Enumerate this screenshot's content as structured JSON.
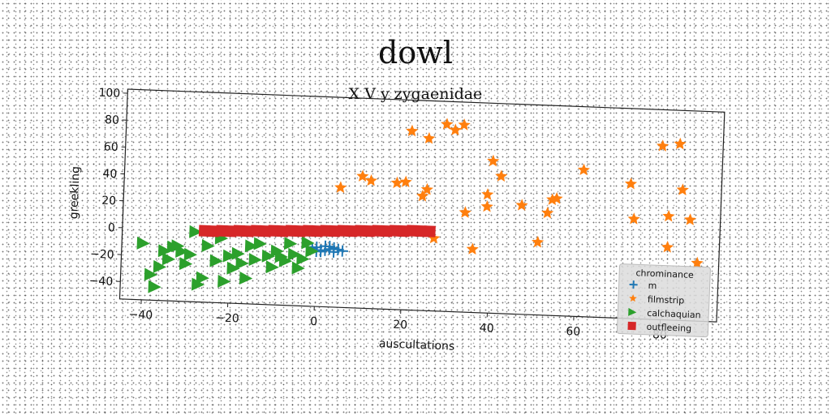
{
  "chart_data": {
    "type": "scatter",
    "title": "dowl",
    "subtitle": "X V y zygaenidae",
    "xlabel": "auscultations",
    "ylabel": "greekling",
    "xlim": [
      -45,
      93
    ],
    "ylim": [
      -53,
      103
    ],
    "xticks": [
      -40,
      -20,
      0,
      20,
      40,
      60,
      80
    ],
    "yticks": [
      -40,
      -20,
      0,
      20,
      40,
      60,
      80,
      100
    ],
    "grid": false,
    "legend": {
      "title": "chrominance",
      "position": "lower-right"
    },
    "series": [
      {
        "name": "m",
        "marker": "plus",
        "color": "#1f77b4",
        "points": [
          [
            -1,
            -10
          ],
          [
            0,
            -9
          ],
          [
            1,
            -11
          ],
          [
            2,
            -8
          ],
          [
            1,
            -12
          ],
          [
            3,
            -10
          ],
          [
            4,
            -9
          ],
          [
            2,
            -11
          ],
          [
            3,
            -8
          ],
          [
            5,
            -10
          ],
          [
            4,
            -12
          ],
          [
            6,
            -11
          ],
          [
            -2,
            -9
          ],
          [
            0,
            -12
          ]
        ]
      },
      {
        "name": "filmstrip",
        "marker": "star",
        "color": "#ff7f0e",
        "points": [
          [
            5,
            36
          ],
          [
            10,
            45
          ],
          [
            12,
            42
          ],
          [
            18,
            41
          ],
          [
            20,
            42
          ],
          [
            21,
            80
          ],
          [
            24,
            32
          ],
          [
            25,
            75
          ],
          [
            25,
            37
          ],
          [
            27,
            1
          ],
          [
            29,
            86
          ],
          [
            31,
            82
          ],
          [
            33,
            86
          ],
          [
            34,
            21
          ],
          [
            36,
            -6
          ],
          [
            39,
            35
          ],
          [
            39,
            26
          ],
          [
            40,
            60
          ],
          [
            42,
            49
          ],
          [
            47,
            28
          ],
          [
            51,
            1
          ],
          [
            53,
            23
          ],
          [
            54,
            33
          ],
          [
            55,
            34
          ],
          [
            61,
            56
          ],
          [
            72,
            47
          ],
          [
            73,
            21
          ],
          [
            79,
            76
          ],
          [
            81,
            24
          ],
          [
            81,
            1
          ],
          [
            83,
            78
          ],
          [
            84,
            44
          ],
          [
            86,
            22
          ],
          [
            88,
            -10
          ]
        ]
      },
      {
        "name": "calchaquian",
        "marker": "triangle-right",
        "color": "#2ca02c",
        "points": [
          [
            -40,
            -11
          ],
          [
            -38,
            -34
          ],
          [
            -37,
            -43
          ],
          [
            -36,
            -28
          ],
          [
            -35,
            -16
          ],
          [
            -34,
            -22
          ],
          [
            -33,
            -13
          ],
          [
            -32,
            -12
          ],
          [
            -31,
            -16
          ],
          [
            -30,
            -25
          ],
          [
            -29,
            -18
          ],
          [
            -28,
            -1
          ],
          [
            -27,
            -40
          ],
          [
            -26,
            -35
          ],
          [
            -25,
            -11
          ],
          [
            -23,
            -22
          ],
          [
            -22,
            -5
          ],
          [
            -21,
            -37
          ],
          [
            -20,
            -18
          ],
          [
            -19,
            -27
          ],
          [
            -18,
            -16
          ],
          [
            -17,
            -23
          ],
          [
            -16,
            -34
          ],
          [
            -15,
            -10
          ],
          [
            -14,
            -20
          ],
          [
            -13,
            -8
          ],
          [
            -11,
            -17
          ],
          [
            -10,
            -25
          ],
          [
            -9,
            -13
          ],
          [
            -8,
            -17
          ],
          [
            -7,
            -20
          ],
          [
            -6,
            -7
          ],
          [
            -5,
            -15
          ],
          [
            -4,
            -25
          ],
          [
            -3,
            -18
          ],
          [
            -2,
            -6
          ],
          [
            -1,
            -12
          ]
        ]
      },
      {
        "name": "outfleeing",
        "marker": "square",
        "color": "#d62728",
        "points": [
          [
            -26,
            0
          ],
          [
            -24,
            0
          ],
          [
            -22,
            0.5
          ],
          [
            -20,
            0.5
          ],
          [
            -18,
            1
          ],
          [
            -16,
            1
          ],
          [
            -14,
            1.5
          ],
          [
            -12,
            1.5
          ],
          [
            -10,
            2
          ],
          [
            -8,
            2
          ],
          [
            -6,
            2.5
          ],
          [
            -4,
            2.5
          ],
          [
            -2,
            3
          ],
          [
            0,
            3
          ],
          [
            2,
            3.5
          ],
          [
            4,
            3.5
          ],
          [
            6,
            4
          ],
          [
            8,
            4
          ],
          [
            10,
            4.5
          ],
          [
            12,
            4.5
          ],
          [
            14,
            5
          ],
          [
            16,
            5
          ],
          [
            18,
            5.5
          ],
          [
            20,
            5.5
          ],
          [
            22,
            6
          ],
          [
            24,
            6
          ],
          [
            26,
            6
          ]
        ]
      }
    ]
  }
}
